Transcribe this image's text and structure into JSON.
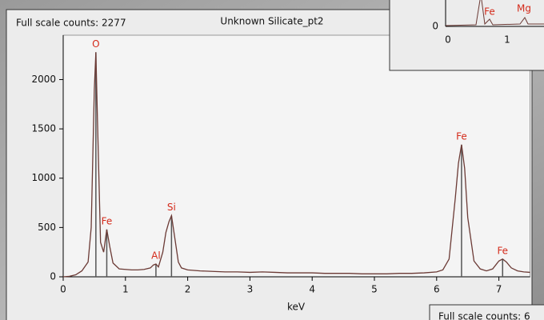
{
  "chart_data": {
    "type": "line",
    "header": "Full scale counts: 2277",
    "title": "Unknown Silicate_pt2",
    "xlabel": "keV",
    "x": [
      0,
      0.1,
      0.2,
      0.3,
      0.4,
      0.45,
      0.5,
      0.525,
      0.55,
      0.6,
      0.65,
      0.7,
      0.75,
      0.8,
      0.9,
      1.0,
      1.1,
      1.2,
      1.3,
      1.4,
      1.45,
      1.49,
      1.53,
      1.6,
      1.65,
      1.7,
      1.74,
      1.78,
      1.85,
      1.9,
      2.0,
      2.2,
      2.4,
      2.6,
      2.8,
      3.0,
      3.2,
      3.4,
      3.6,
      3.8,
      4.0,
      4.2,
      4.4,
      4.6,
      4.8,
      5.0,
      5.2,
      5.4,
      5.6,
      5.8,
      6.0,
      6.1,
      6.2,
      6.3,
      6.35,
      6.4,
      6.45,
      6.5,
      6.6,
      6.7,
      6.8,
      6.9,
      6.95,
      7.0,
      7.06,
      7.12,
      7.2,
      7.3,
      7.4,
      7.5
    ],
    "values": [
      0,
      5,
      20,
      60,
      150,
      500,
      1900,
      2277,
      1600,
      350,
      250,
      480,
      300,
      140,
      80,
      75,
      70,
      70,
      75,
      90,
      120,
      130,
      100,
      250,
      450,
      560,
      620,
      450,
      150,
      90,
      70,
      60,
      55,
      50,
      50,
      45,
      50,
      45,
      40,
      40,
      40,
      35,
      35,
      35,
      30,
      30,
      30,
      35,
      35,
      40,
      50,
      70,
      180,
      800,
      1150,
      1340,
      1100,
      600,
      160,
      80,
      60,
      80,
      120,
      160,
      180,
      150,
      90,
      60,
      50,
      45
    ],
    "color": "#6b3a35",
    "peak_markers": [
      {
        "label": "O",
        "x": 0.525,
        "y": 2277
      },
      {
        "label": "Fe",
        "x": 0.7,
        "y": 480
      },
      {
        "label": "Al",
        "x": 1.49,
        "y": 130
      },
      {
        "label": "Si",
        "x": 1.74,
        "y": 620
      },
      {
        "label": "Fe",
        "x": 6.4,
        "y": 1340
      },
      {
        "label": "Fe",
        "x": 7.06,
        "y": 180
      }
    ],
    "marker_color": "#555555",
    "label_color": "#d42a1a",
    "xlim": [
      0,
      7.5
    ],
    "xticks": [
      0,
      1,
      2,
      3,
      4,
      5,
      6,
      7
    ],
    "ylim": [
      0,
      2450
    ],
    "yticks": [
      0,
      500,
      1000,
      1500,
      2000
    ],
    "grid": false
  },
  "inset_top": {
    "xticks": [
      0,
      1
    ],
    "yticks": [
      0
    ],
    "labels": [
      "Fe",
      "Mg"
    ]
  },
  "inset_bottom": {
    "header": "Full scale counts: 6"
  }
}
